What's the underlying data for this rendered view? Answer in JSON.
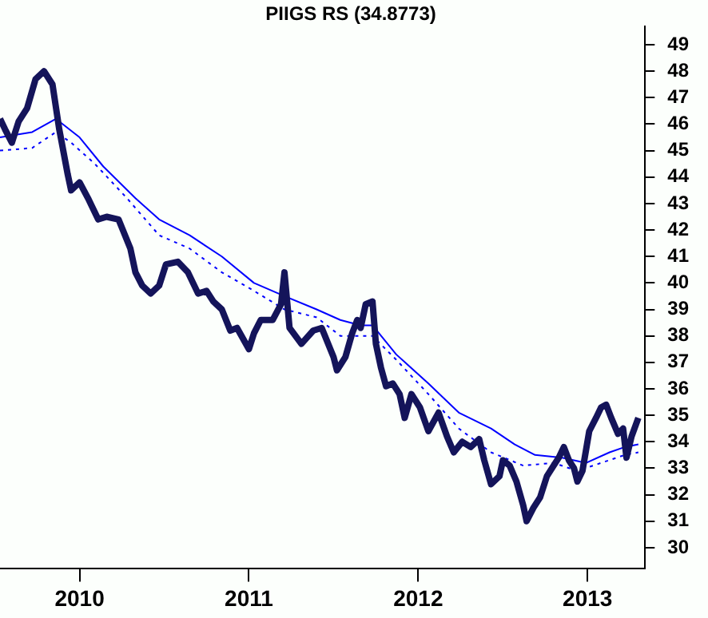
{
  "chart_data": {
    "type": "line",
    "title": "PIIGS RS (34.8773)",
    "marker": "none",
    "xlim": [
      2009.53,
      2013.34
    ],
    "xticks": [
      {
        "value": 2010,
        "label": "2010"
      },
      {
        "value": 2011,
        "label": "2011"
      },
      {
        "value": 2012,
        "label": "2012"
      },
      {
        "value": 2013,
        "label": "2013"
      }
    ],
    "ylim": [
      29.2,
      49.7
    ],
    "yticks": [
      30,
      31,
      32,
      33,
      34,
      35,
      36,
      37,
      38,
      39,
      40,
      41,
      42,
      43,
      44,
      45,
      46,
      47,
      48,
      49
    ],
    "series": [
      {
        "color": "#14145a",
        "line_style": "solid",
        "x": [
          2009.53,
          2009.56,
          2009.6,
          2009.64,
          2009.69,
          2009.74,
          2009.79,
          2009.84,
          2009.88,
          2009.93,
          2009.95,
          2010.0,
          2010.05,
          2010.11,
          2010.16,
          2010.23,
          2010.3,
          2010.33,
          2010.37,
          2010.42,
          2010.47,
          2010.51,
          2010.58,
          2010.64,
          2010.7,
          2010.75,
          2010.79,
          2010.84,
          2010.89,
          2010.93,
          2011.0,
          2011.03,
          2011.07,
          2011.14,
          2011.19,
          2011.21,
          2011.24,
          2011.31,
          2011.38,
          2011.43,
          2011.5,
          2011.52,
          2011.57,
          2011.61,
          2011.64,
          2011.66,
          2011.69,
          2011.73,
          2011.75,
          2011.78,
          2011.81,
          2011.85,
          2011.89,
          2011.92,
          2011.96,
          2012.01,
          2012.06,
          2012.12,
          2012.17,
          2012.21,
          2012.26,
          2012.31,
          2012.36,
          2012.39,
          2012.43,
          2012.48,
          2012.5,
          2012.54,
          2012.58,
          2012.62,
          2012.64,
          2012.68,
          2012.72,
          2012.76,
          2012.79,
          2012.83,
          2012.86,
          2012.89,
          2012.92,
          2012.94,
          2012.97,
          2013.01,
          2013.05,
          2013.08,
          2013.11,
          2013.14,
          2013.18,
          2013.21,
          2013.23,
          2013.26,
          2013.3
        ],
        "values": [
          46.2,
          45.8,
          45.3,
          46.1,
          46.6,
          47.7,
          48.0,
          47.5,
          45.8,
          44.1,
          43.5,
          43.8,
          43.2,
          42.4,
          42.5,
          42.4,
          41.3,
          40.4,
          39.9,
          39.6,
          39.9,
          40.7,
          40.8,
          40.4,
          39.6,
          39.7,
          39.3,
          39.0,
          38.2,
          38.3,
          37.5,
          38.1,
          38.6,
          38.6,
          39.2,
          40.4,
          38.3,
          37.7,
          38.2,
          38.3,
          37.2,
          36.7,
          37.2,
          38.1,
          38.6,
          38.3,
          39.2,
          39.3,
          37.7,
          36.8,
          36.1,
          36.2,
          35.8,
          34.9,
          35.8,
          35.3,
          34.4,
          35.1,
          34.2,
          33.6,
          34.0,
          33.8,
          34.1,
          33.3,
          32.4,
          32.7,
          33.3,
          33.1,
          32.5,
          31.6,
          31.0,
          31.5,
          31.9,
          32.7,
          33.0,
          33.4,
          33.8,
          33.3,
          33.0,
          32.5,
          32.9,
          34.4,
          34.9,
          35.3,
          35.4,
          34.9,
          34.3,
          34.5,
          33.4,
          34.2,
          34.9
        ]
      },
      {
        "color": "#0000ff",
        "line_style": "solid",
        "x": [
          2009.53,
          2009.72,
          2009.86,
          2010.0,
          2010.14,
          2010.33,
          2010.47,
          2010.65,
          2010.84,
          2011.03,
          2011.21,
          2011.4,
          2011.54,
          2011.66,
          2011.73,
          2011.87,
          2012.06,
          2012.24,
          2012.43,
          2012.57,
          2012.69,
          2012.85,
          2012.99,
          2013.13,
          2013.22,
          2013.3
        ],
        "values": [
          45.5,
          45.7,
          46.2,
          45.5,
          44.4,
          43.2,
          42.4,
          41.8,
          41.0,
          40.0,
          39.5,
          39.0,
          38.6,
          38.4,
          38.4,
          37.3,
          36.2,
          35.1,
          34.5,
          33.9,
          33.5,
          33.4,
          33.2,
          33.6,
          33.8,
          33.9
        ]
      },
      {
        "color": "#0000ff",
        "line_style": "dotted",
        "x": [
          2009.53,
          2009.72,
          2009.86,
          2009.95,
          2010.09,
          2010.28,
          2010.47,
          2010.65,
          2010.84,
          2011.03,
          2011.21,
          2011.4,
          2011.54,
          2011.73,
          2011.87,
          2012.06,
          2012.24,
          2012.43,
          2012.62,
          2012.8,
          2012.94,
          2013.08,
          2013.22,
          2013.3
        ],
        "values": [
          45.0,
          45.1,
          45.7,
          45.3,
          44.5,
          43.2,
          41.8,
          41.3,
          40.4,
          39.7,
          39.0,
          38.7,
          38.0,
          38.0,
          37.1,
          35.8,
          34.5,
          33.6,
          33.1,
          33.2,
          32.9,
          33.2,
          33.5,
          33.6
        ]
      }
    ]
  }
}
